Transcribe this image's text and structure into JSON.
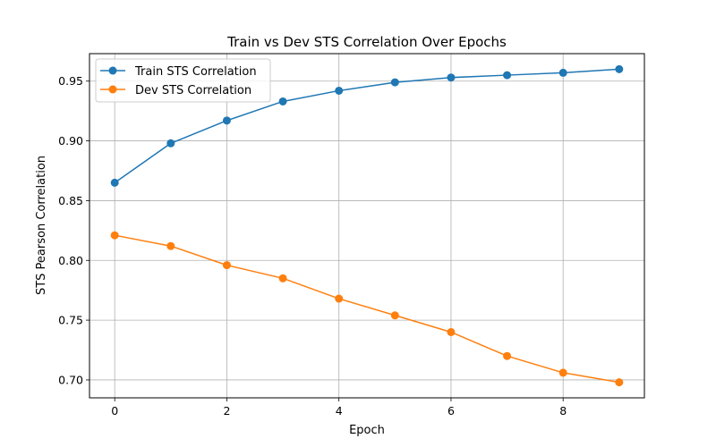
{
  "chart_data": {
    "type": "line",
    "title": "Train vs Dev STS Correlation Over Epochs",
    "xlabel": "Epoch",
    "ylabel": "STS Pearson Correlation",
    "x": [
      0,
      1,
      2,
      3,
      4,
      5,
      6,
      7,
      8,
      9
    ],
    "xlim": [
      -0.45,
      9.45
    ],
    "ylim": [
      0.685,
      0.973
    ],
    "xticks": [
      0,
      2,
      4,
      6,
      8
    ],
    "xtick_labels": [
      "0",
      "2",
      "4",
      "6",
      "8"
    ],
    "yticks": [
      0.7,
      0.75,
      0.8,
      0.85,
      0.9,
      0.95
    ],
    "ytick_labels": [
      "0.70",
      "0.75",
      "0.80",
      "0.85",
      "0.90",
      "0.95"
    ],
    "grid": true,
    "legend_position": "top-left",
    "series": [
      {
        "name": "Train STS Correlation",
        "color": "#1f77b4",
        "marker": "circle",
        "values": [
          0.865,
          0.898,
          0.917,
          0.933,
          0.942,
          0.949,
          0.953,
          0.955,
          0.957,
          0.96
        ]
      },
      {
        "name": "Dev STS Correlation",
        "color": "#ff7f0e",
        "marker": "circle",
        "values": [
          0.821,
          0.812,
          0.796,
          0.785,
          0.768,
          0.754,
          0.74,
          0.72,
          0.706,
          0.698
        ]
      }
    ]
  }
}
